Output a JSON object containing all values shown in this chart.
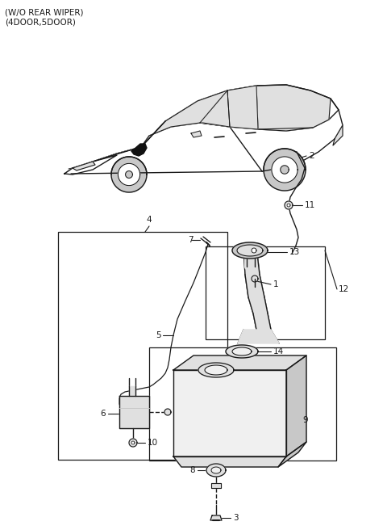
{
  "title_line1": "(W/O REAR WIPER)",
  "title_line2": "(4DOOR,5DOOR)",
  "bg_color": "#ffffff",
  "lc": "#1a1a1a",
  "gray1": "#c8c8c8",
  "gray2": "#e0e0e0",
  "gray3": "#f0f0f0",
  "figw": 4.8,
  "figh": 6.56,
  "dpi": 100
}
